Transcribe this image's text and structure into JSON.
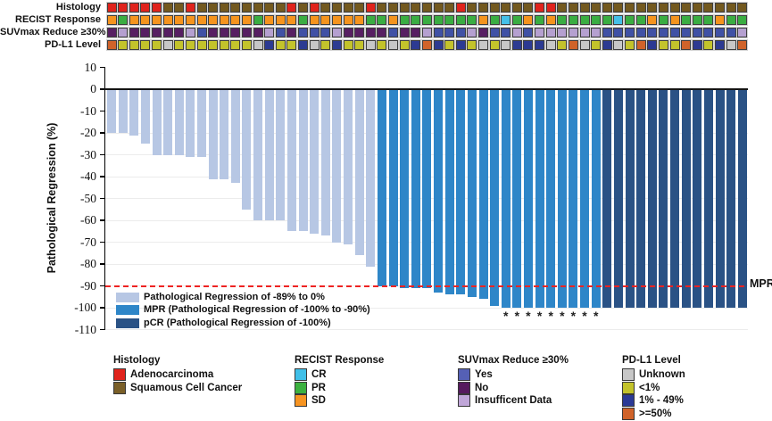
{
  "tracks": {
    "rows": [
      {
        "label": "Histology",
        "palette": {
          "A": "#e0231c",
          "S": "#73591f"
        },
        "codes": "AAAAASSASSSSSSSSASASSSSASSSSSSSASSSSSSAASSSSSSSSSSSSSSSSS"
      },
      {
        "label": "RECIST Response",
        "palette": {
          "O": "#f5941e",
          "P": "#3aad42",
          "C": "#45c0e8"
        },
        "codes": "OPOOOOOOOOOOOPOOOPOOOOOPPOPPPPPPPOPCPOPOPPPPPCPPOPOPPPOPP"
      },
      {
        "label": "SUVmax Reduce ≥30%",
        "palette": {
          "B": "#4051a5",
          "N": "#571f62",
          "L": "#b5a0d0"
        },
        "codes": "NLNNNNNLBNNNNNLBNBBBLNNNNBNNLBBBLNBBLBLLLLLLBBBBBBBBBBBBL"
      },
      {
        "label": "PD-L1 Level",
        "palette": {
          "G": "#c7c7c7",
          "Y": "#c3c32b",
          "B": "#2c3a92",
          "O": "#d0632a"
        },
        "codes": "OYYYYGYYYYYYYGBYYBGYBYYGYGYBOBYBYGYGBBBGYOGYBGYOBYYOBYBGO"
      }
    ]
  },
  "chart_data": {
    "type": "bar",
    "title": "",
    "xlabel": "",
    "ylabel": "Pathological Regression (%)",
    "ylim": [
      -110,
      10
    ],
    "ytick_labels": [
      "10",
      "0",
      "-10",
      "-20",
      "-30",
      "-40",
      "-50",
      "-60",
      "-70",
      "-80",
      "-90",
      "-100",
      "-110"
    ],
    "yticks": [
      10,
      0,
      -10,
      -20,
      -30,
      -40,
      -50,
      -60,
      -70,
      -80,
      -90,
      -100,
      -110
    ],
    "grid": true,
    "values": [
      -20,
      -20,
      -21,
      -25,
      -30,
      -30,
      -30,
      -31,
      -31,
      -41,
      -41,
      -43,
      -55,
      -60,
      -60,
      -60,
      -65,
      -65,
      -66,
      -67,
      -70,
      -71,
      -76,
      -81,
      -90,
      -90,
      -91,
      -91,
      -91,
      -93,
      -94,
      -94,
      -95,
      -96,
      -99,
      -100,
      -100,
      -100,
      -100,
      -100,
      -100,
      -100,
      -100,
      -100,
      -100,
      -100,
      -100,
      -100,
      -100,
      -100,
      -100,
      -100,
      -100,
      -100,
      -100,
      -100,
      -100
    ],
    "bar_categories": [
      "reg",
      "reg",
      "reg",
      "reg",
      "reg",
      "reg",
      "reg",
      "reg",
      "reg",
      "reg",
      "reg",
      "reg",
      "reg",
      "reg",
      "reg",
      "reg",
      "reg",
      "reg",
      "reg",
      "reg",
      "reg",
      "reg",
      "reg",
      "reg",
      "mpr",
      "mpr",
      "mpr",
      "mpr",
      "mpr",
      "mpr",
      "mpr",
      "mpr",
      "mpr",
      "mpr",
      "mpr",
      "mpr",
      "mpr",
      "mpr",
      "mpr",
      "mpr",
      "mpr",
      "mpr",
      "mpr",
      "mpr",
      "pcr",
      "pcr",
      "pcr",
      "pcr",
      "pcr",
      "pcr",
      "pcr",
      "pcr",
      "pcr",
      "pcr",
      "pcr",
      "pcr",
      "pcr"
    ],
    "bar_colors": {
      "reg": "#b7c7e4",
      "mpr": "#2e86c8",
      "pcr": "#2a5285"
    },
    "asterisk_bars": [
      36,
      37,
      38,
      39,
      40,
      41,
      42,
      43,
      44
    ],
    "asterisk_glyph": "*",
    "reference_line": {
      "value": -90,
      "label": "MPR",
      "color": "#ee2322",
      "style": "dashed"
    },
    "legend_position": "bottom-left-inside",
    "legend": [
      {
        "key": "reg",
        "label": "Pathological Regression of -89% to 0%"
      },
      {
        "key": "mpr",
        "label": "MPR (Pathological Regression of -100% to -90%)"
      },
      {
        "key": "pcr",
        "label": "pCR (Pathological Regression of -100%)"
      }
    ]
  },
  "bottom_legend": {
    "groups": [
      {
        "title": "Histology",
        "items": [
          {
            "label": "Adenocarcinoma",
            "color": "#e0231c"
          },
          {
            "label": "Squamous Cell Cancer",
            "color": "#7a5f28"
          }
        ]
      },
      {
        "title": "RECIST Response",
        "items": [
          {
            "label": "CR",
            "color": "#3fbfe8"
          },
          {
            "label": "PR",
            "color": "#3cb13f"
          },
          {
            "label": "SD",
            "color": "#f79421"
          }
        ]
      },
      {
        "title": "SUVmax Reduce ≥30%",
        "items": [
          {
            "label": "Yes",
            "color": "#5560b5"
          },
          {
            "label": "No",
            "color": "#561a5e"
          },
          {
            "label": "Insufficent Data",
            "color": "#c0a6d8"
          }
        ]
      },
      {
        "title": "PD-L1 Level",
        "items": [
          {
            "label": "Unknown",
            "color": "#c7c7c7"
          },
          {
            "label": "<1%",
            "color": "#c3c32b"
          },
          {
            "label": "1% - 49%",
            "color": "#2b3a96"
          },
          {
            "label": ">=50%",
            "color": "#d0632a"
          }
        ]
      }
    ]
  }
}
